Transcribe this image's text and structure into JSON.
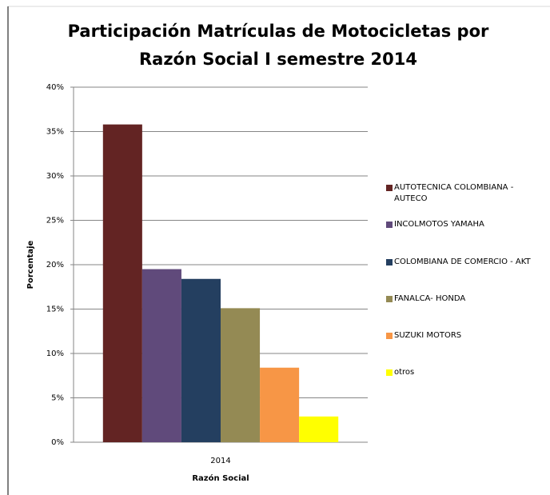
{
  "chart_data": {
    "type": "bar",
    "title": "Participación Matrículas de Motocicletas por Razón Social I semestre 2014",
    "x_label": "Razón Social",
    "y_label": "Porcentaje",
    "categories": [
      "2014"
    ],
    "series": [
      {
        "name": "AUTOTECNICA COLOMBIANA - AUTECO",
        "color": "#632423",
        "values": [
          35.8
        ]
      },
      {
        "name": "INCOLMOTOS YAMAHA",
        "color": "#604a7b",
        "values": [
          19.5
        ]
      },
      {
        "name": "COLOMBIANA DE COMERCIO - AKT",
        "color": "#243f60",
        "values": [
          18.4
        ]
      },
      {
        "name": "FANALCA- HONDA",
        "color": "#948a54",
        "values": [
          15.1
        ]
      },
      {
        "name": "SUZUKI MOTORS",
        "color": "#f79646",
        "values": [
          8.4
        ]
      },
      {
        "name": "otros",
        "color": "#ffff00",
        "values": [
          2.9
        ]
      }
    ],
    "ylim": [
      0,
      40
    ],
    "yticks": [
      {
        "value": 0,
        "label": "0%"
      },
      {
        "value": 5,
        "label": "5%"
      },
      {
        "value": 10,
        "label": "10%"
      },
      {
        "value": 15,
        "label": "15%"
      },
      {
        "value": 20,
        "label": "20%"
      },
      {
        "value": 25,
        "label": "25%"
      },
      {
        "value": 30,
        "label": "30%"
      },
      {
        "value": 35,
        "label": "35%"
      },
      {
        "value": 40,
        "label": "40%"
      }
    ],
    "grid": true,
    "legend": "right"
  }
}
